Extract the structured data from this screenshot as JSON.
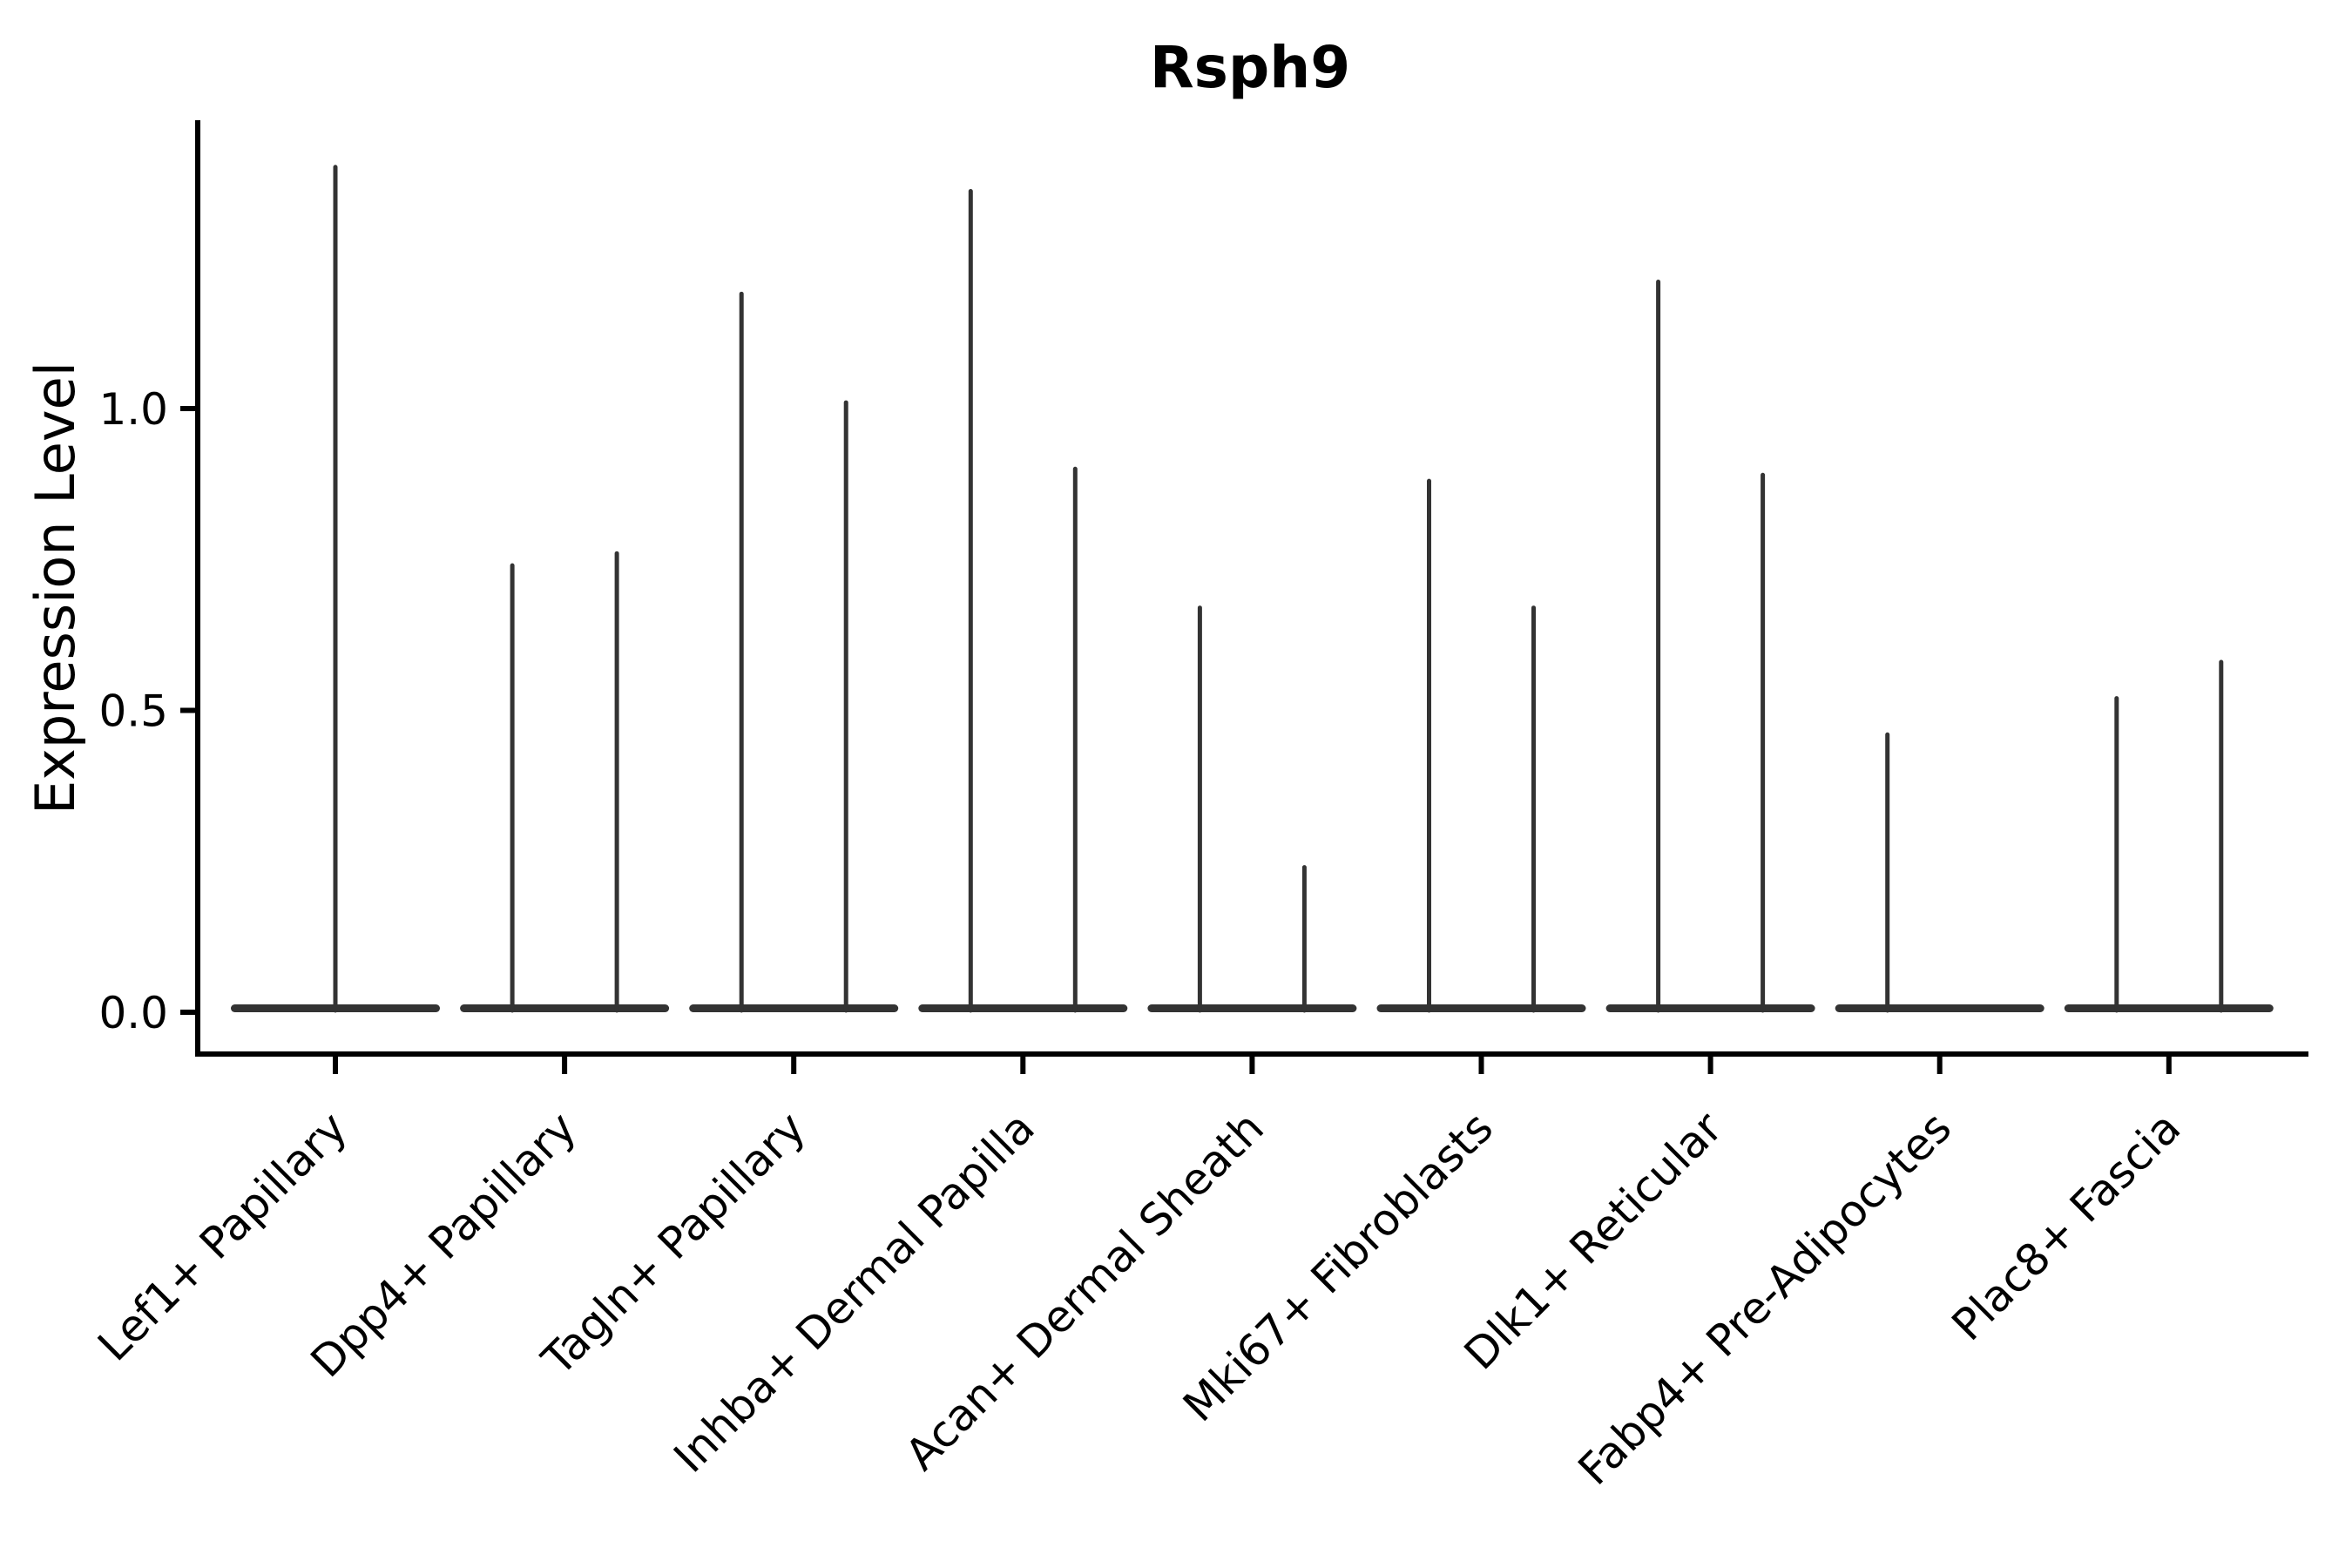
{
  "figure": {
    "background": "#ffffff"
  },
  "chart_data": {
    "type": "violin",
    "title": "Rsph9",
    "xlabel": "",
    "ylabel": "Expression Level",
    "ytick_labels": [
      "0.0",
      "0.5",
      "1.0"
    ],
    "ytick_values": [
      0.0,
      0.5,
      1.0
    ],
    "ylim": [
      0.0,
      1.47
    ],
    "grid": false,
    "legend": "none",
    "colors": {
      "violin": "#333333",
      "axis": "#000000",
      "text": "#000000"
    },
    "categories": [
      {
        "label": "Lef1+ Papillary",
        "violins": [
          {
            "pos": "center",
            "max": 1.4
          }
        ]
      },
      {
        "label": "Dpp4+ Papillary",
        "violins": [
          {
            "pos": "left",
            "max": 0.74
          },
          {
            "pos": "right",
            "max": 0.76
          }
        ]
      },
      {
        "label": "Tagln+ Papillary",
        "violins": [
          {
            "pos": "left",
            "max": 1.19
          },
          {
            "pos": "right",
            "max": 1.01
          }
        ]
      },
      {
        "label": "Inhba+ Dermal Papilla",
        "violins": [
          {
            "pos": "left",
            "max": 1.36
          },
          {
            "pos": "right",
            "max": 0.9
          }
        ]
      },
      {
        "label": "Acan+ Dermal Sheath",
        "violins": [
          {
            "pos": "left",
            "max": 0.67
          },
          {
            "pos": "right",
            "max": 0.24
          }
        ]
      },
      {
        "label": "Mki67+ Fibroblasts",
        "violins": [
          {
            "pos": "left",
            "max": 0.88
          },
          {
            "pos": "right",
            "max": 0.67
          }
        ]
      },
      {
        "label": "Dlk1+ Reticular",
        "violins": [
          {
            "pos": "left",
            "max": 1.21
          },
          {
            "pos": "right",
            "max": 0.89
          }
        ]
      },
      {
        "label": "Fabp4+ Pre-Adipocytes",
        "violins": [
          {
            "pos": "left",
            "max": 0.46
          }
        ]
      },
      {
        "label": "Plac8+ Fascia",
        "violins": [
          {
            "pos": "left",
            "max": 0.52
          },
          {
            "pos": "right",
            "max": 0.58
          }
        ]
      }
    ]
  }
}
